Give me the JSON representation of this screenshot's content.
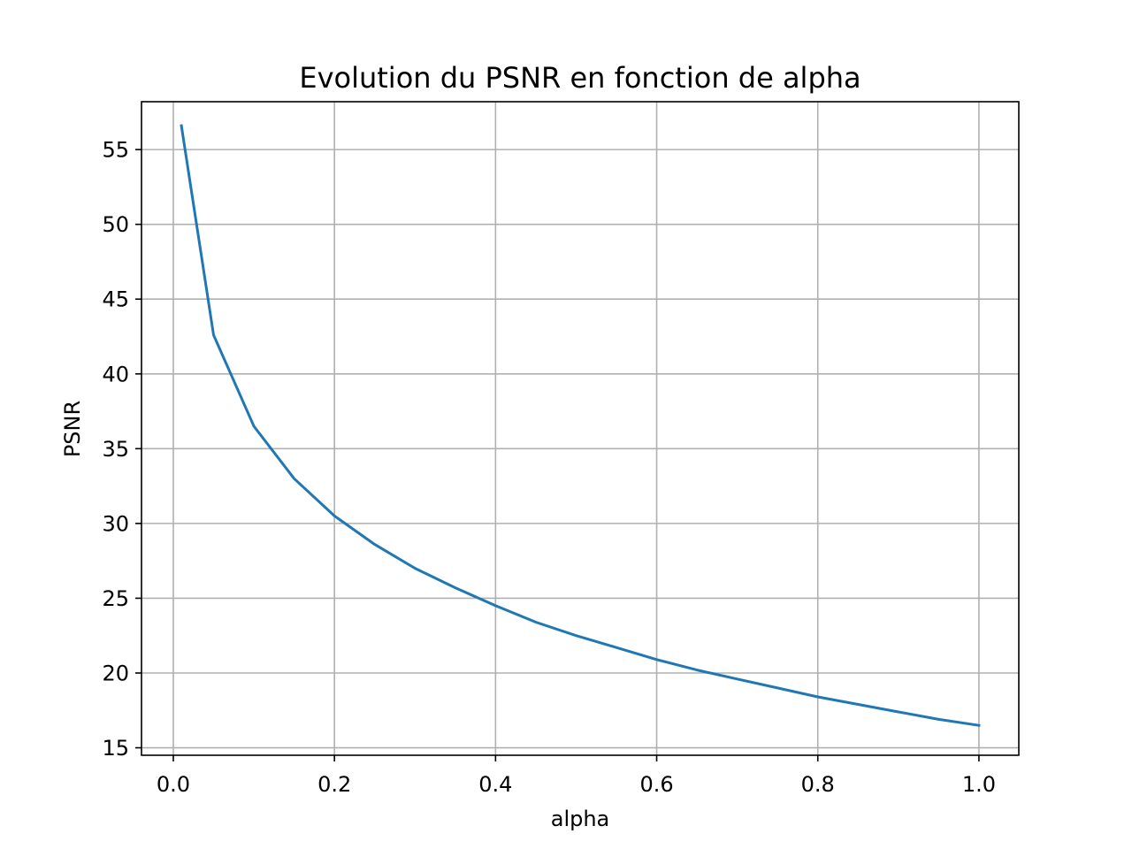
{
  "chart_data": {
    "type": "line",
    "title": "Evolution du PSNR en fonction de alpha",
    "xlabel": "alpha",
    "ylabel": "PSNR",
    "xlim": [
      -0.0395,
      1.0495
    ],
    "ylim": [
      14.5,
      58.2
    ],
    "xticks": [
      0.0,
      0.2,
      0.4,
      0.6,
      0.8,
      1.0
    ],
    "xtick_labels": [
      "0.0",
      "0.2",
      "0.4",
      "0.6",
      "0.8",
      "1.0"
    ],
    "yticks": [
      15,
      20,
      25,
      30,
      35,
      40,
      45,
      50,
      55
    ],
    "ytick_labels": [
      "15",
      "20",
      "25",
      "30",
      "35",
      "40",
      "45",
      "50",
      "55"
    ],
    "grid": true,
    "series": [
      {
        "color": "#1f77b4",
        "x": [
          0.01,
          0.05,
          0.1,
          0.15,
          0.2,
          0.25,
          0.3,
          0.35,
          0.4,
          0.45,
          0.5,
          0.55,
          0.6,
          0.65,
          0.7,
          0.75,
          0.8,
          0.85,
          0.9,
          0.95,
          1.0
        ],
        "y": [
          56.6,
          42.6,
          36.5,
          33.0,
          30.5,
          28.6,
          27.0,
          25.7,
          24.5,
          23.4,
          22.5,
          21.7,
          20.9,
          20.2,
          19.6,
          19.0,
          18.4,
          17.9,
          17.4,
          16.9,
          16.5
        ]
      }
    ]
  }
}
